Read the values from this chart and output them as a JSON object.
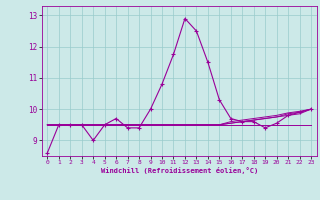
{
  "xlabel": "Windchill (Refroidissement éolien,°C)",
  "background_color": "#cce9e8",
  "line_color": "#990099",
  "grid_color": "#99cccc",
  "xlim": [
    -0.5,
    23.5
  ],
  "ylim": [
    8.5,
    13.3
  ],
  "yticks": [
    9,
    10,
    11,
    12,
    13
  ],
  "xticks": [
    0,
    1,
    2,
    3,
    4,
    5,
    6,
    7,
    8,
    9,
    10,
    11,
    12,
    13,
    14,
    15,
    16,
    17,
    18,
    19,
    20,
    21,
    22,
    23
  ],
  "series": {
    "main": [
      8.6,
      9.5,
      9.5,
      9.5,
      9.0,
      9.5,
      9.7,
      9.4,
      9.4,
      10.0,
      10.8,
      11.75,
      12.9,
      12.5,
      11.5,
      10.3,
      9.7,
      9.6,
      9.6,
      9.4,
      9.55,
      9.8,
      9.9,
      10.0
    ],
    "line2": [
      9.5,
      9.5,
      9.5,
      9.5,
      9.5,
      9.5,
      9.5,
      9.5,
      9.5,
      9.5,
      9.5,
      9.5,
      9.5,
      9.5,
      9.5,
      9.5,
      9.55,
      9.6,
      9.65,
      9.7,
      9.75,
      9.8,
      9.85,
      10.0
    ],
    "line3": [
      9.5,
      9.5,
      9.5,
      9.5,
      9.5,
      9.5,
      9.5,
      9.5,
      9.5,
      9.5,
      9.5,
      9.5,
      9.5,
      9.5,
      9.5,
      9.5,
      9.5,
      9.5,
      9.5,
      9.5,
      9.5,
      9.5,
      9.5,
      9.5
    ],
    "line4": [
      9.5,
      9.5,
      9.5,
      9.5,
      9.5,
      9.5,
      9.5,
      9.5,
      9.5,
      9.5,
      9.5,
      9.5,
      9.5,
      9.5,
      9.5,
      9.5,
      9.55,
      9.6,
      9.65,
      9.7,
      9.75,
      9.85,
      9.9,
      10.0
    ],
    "line5": [
      9.5,
      9.5,
      9.5,
      9.5,
      9.5,
      9.5,
      9.5,
      9.5,
      9.5,
      9.5,
      9.5,
      9.5,
      9.5,
      9.5,
      9.5,
      9.5,
      9.6,
      9.65,
      9.7,
      9.75,
      9.8,
      9.88,
      9.93,
      10.0
    ]
  }
}
